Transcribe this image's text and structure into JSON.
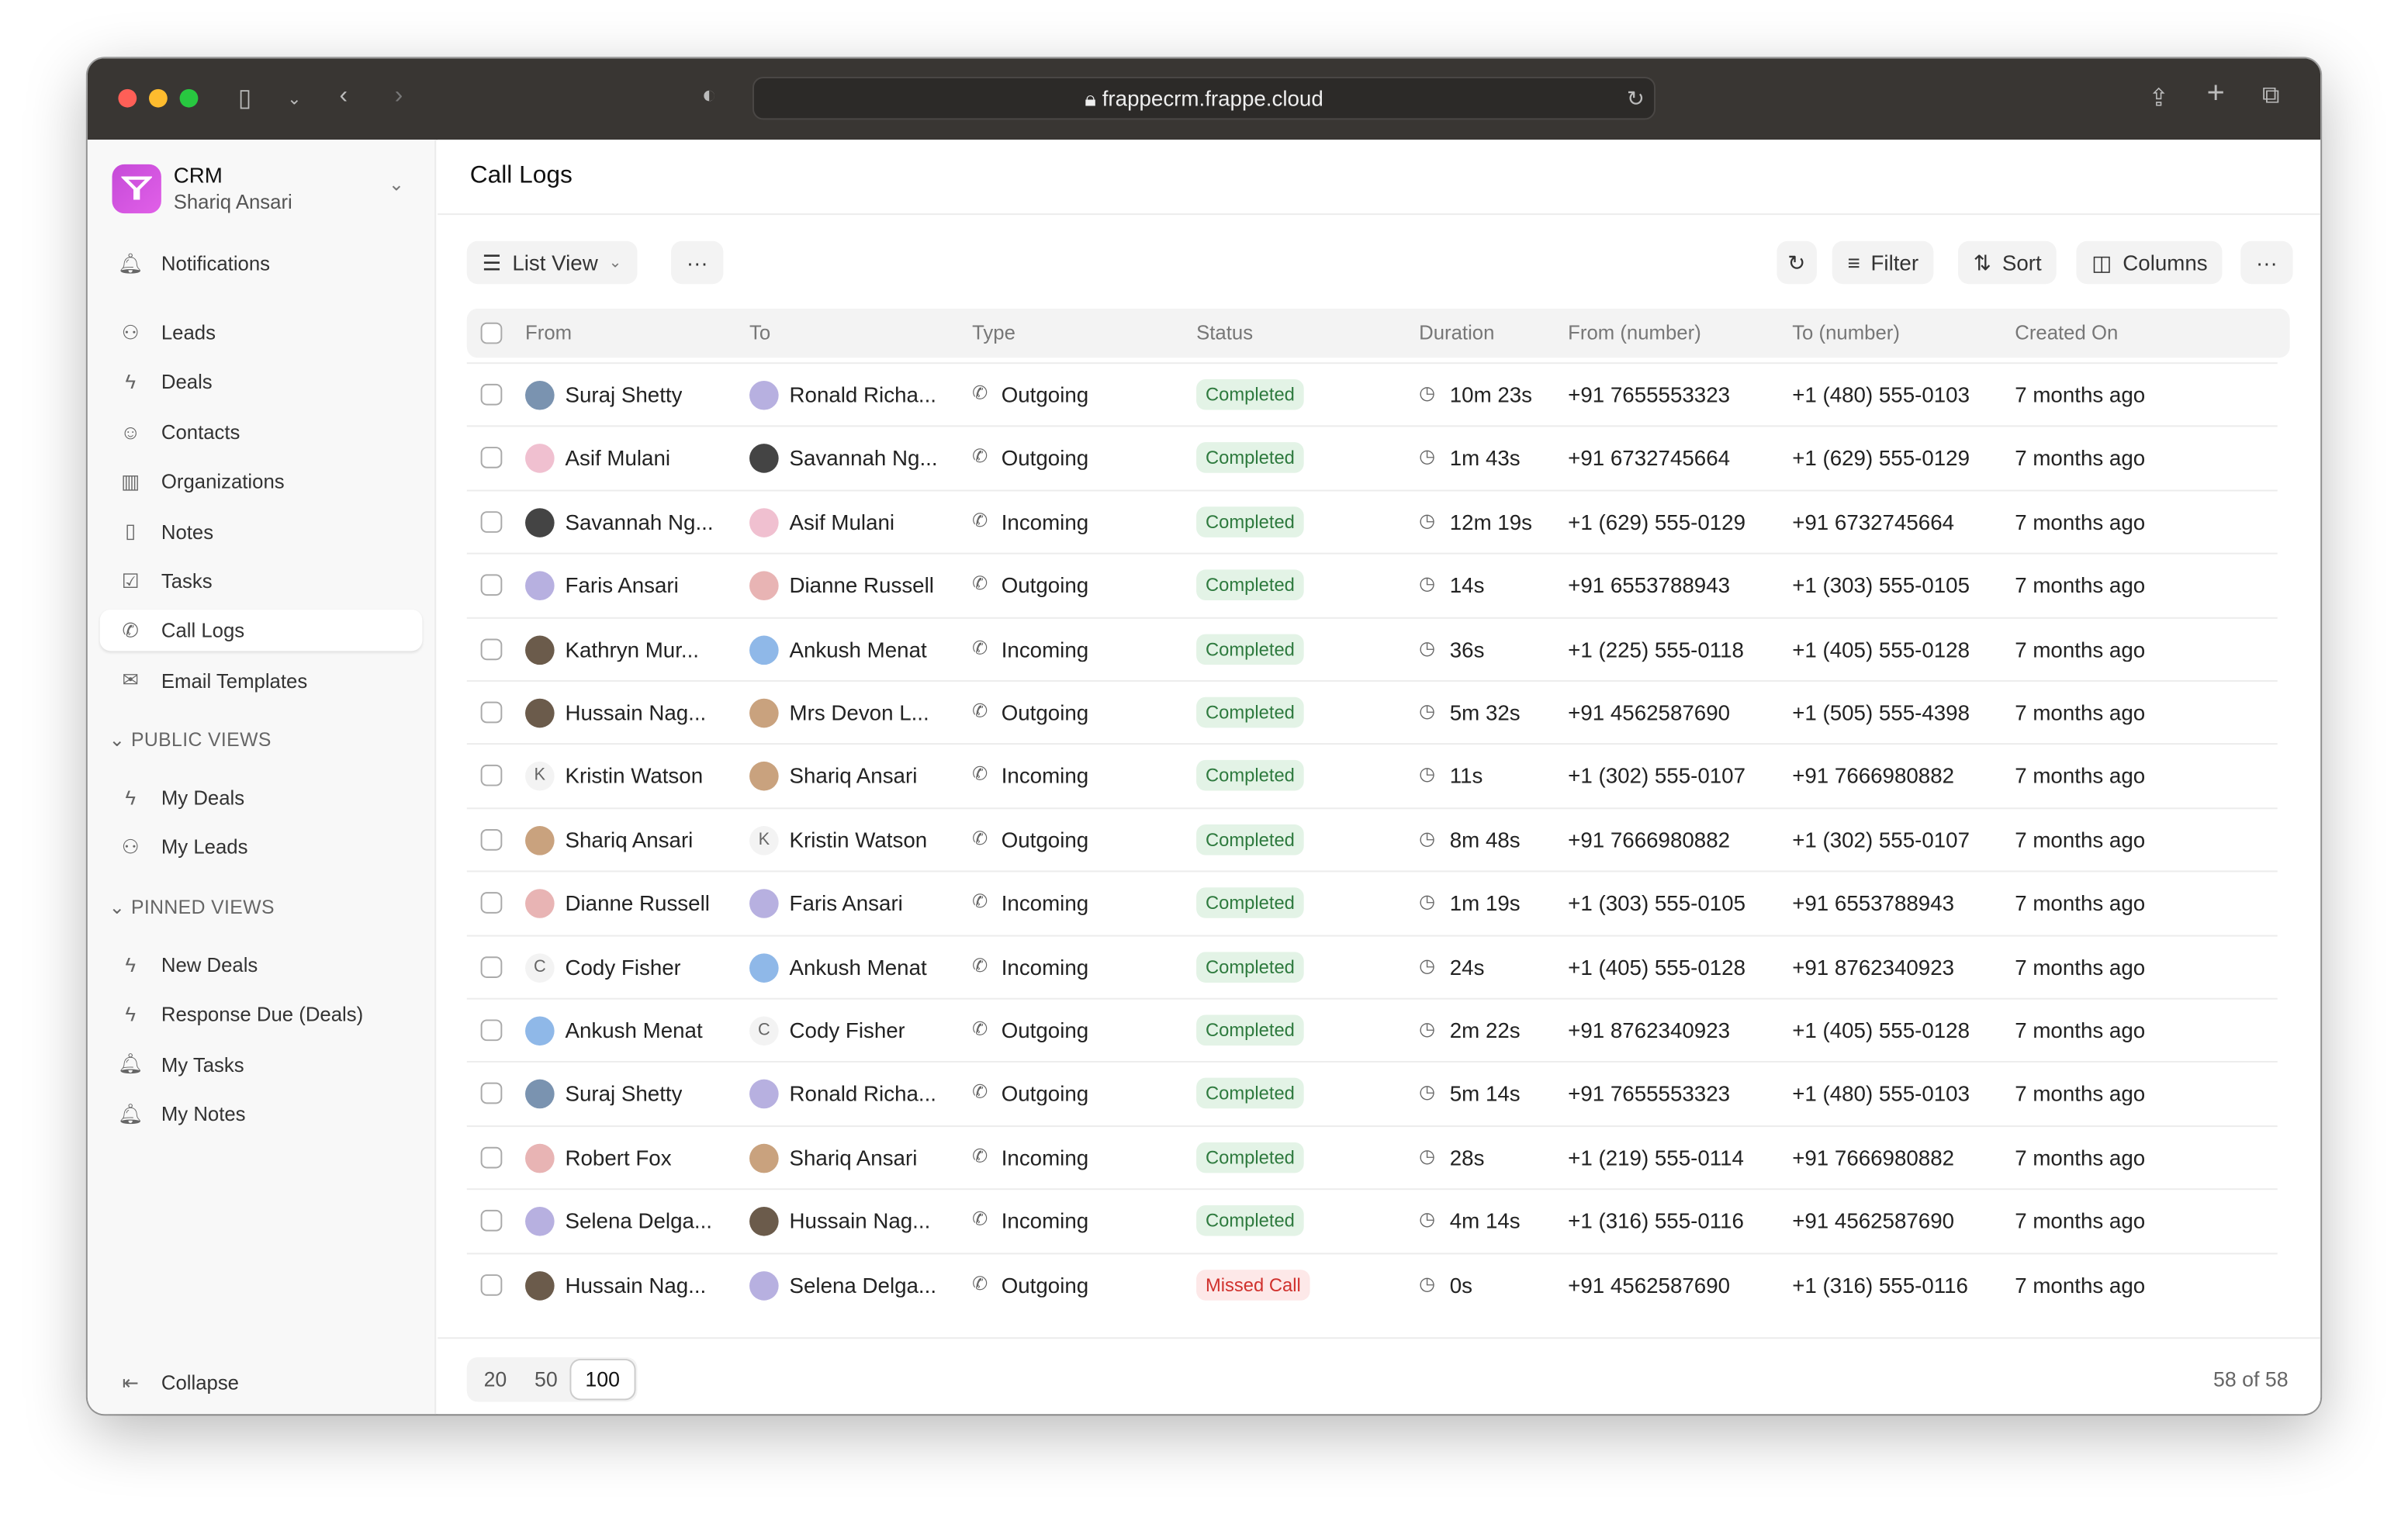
{
  "browser": {
    "url": "frappecrm.frappe.cloud"
  },
  "sidebar": {
    "app": "CRM",
    "user": "Shariq Ansari",
    "top": [
      {
        "label": "Notifications",
        "icon": "bell-icon"
      }
    ],
    "items": [
      {
        "label": "Leads",
        "icon": "users-icon"
      },
      {
        "label": "Deals",
        "icon": "zap-icon"
      },
      {
        "label": "Contacts",
        "icon": "contact-icon"
      },
      {
        "label": "Organizations",
        "icon": "building-icon"
      },
      {
        "label": "Notes",
        "icon": "file-icon"
      },
      {
        "label": "Tasks",
        "icon": "check-square-icon"
      },
      {
        "label": "Call Logs",
        "icon": "phone-icon",
        "active": true
      },
      {
        "label": "Email Templates",
        "icon": "mail-icon"
      }
    ],
    "public_title": "PUBLIC VIEWS",
    "public": [
      {
        "label": "My Deals",
        "icon": "zap-icon"
      },
      {
        "label": "My Leads",
        "icon": "users-icon"
      }
    ],
    "pinned_title": "PINNED VIEWS",
    "pinned": [
      {
        "label": "New Deals",
        "icon": "zap-icon"
      },
      {
        "label": "Response Due (Deals)",
        "icon": "zap-icon"
      },
      {
        "label": "My Tasks",
        "icon": "bell-icon"
      },
      {
        "label": "My Notes",
        "icon": "bell-icon"
      }
    ],
    "collapse": "Collapse"
  },
  "page": {
    "title": "Call Logs"
  },
  "toolbar": {
    "view": "List View",
    "filter": "Filter",
    "sort": "Sort",
    "columns": "Columns"
  },
  "table": {
    "headers": [
      "From",
      "To",
      "Type",
      "Status",
      "Duration",
      "From (number)",
      "To (number)",
      "Created On"
    ],
    "rows": [
      [
        "Suraj Shetty",
        "Ronald Richa...",
        "Outgoing",
        "Completed",
        "10m 23s",
        "+91 7655553323",
        "+1 (480) 555-0103",
        "7 months ago"
      ],
      [
        "Asif Mulani",
        "Savannah Ng...",
        "Outgoing",
        "Completed",
        "1m 43s",
        "+91 6732745664",
        "+1 (629) 555-0129",
        "7 months ago"
      ],
      [
        "Savannah Ng...",
        "Asif Mulani",
        "Incoming",
        "Completed",
        "12m 19s",
        "+1 (629) 555-0129",
        "+91 6732745664",
        "7 months ago"
      ],
      [
        "Faris Ansari",
        "Dianne Russell",
        "Outgoing",
        "Completed",
        "14s",
        "+91 6553788943",
        "+1 (303) 555-0105",
        "7 months ago"
      ],
      [
        "Kathryn Mur...",
        "Ankush Menat",
        "Incoming",
        "Completed",
        "36s",
        "+1 (225) 555-0118",
        "+1 (405) 555-0128",
        "7 months ago"
      ],
      [
        "Hussain Nag...",
        "Mrs Devon L...",
        "Outgoing",
        "Completed",
        "5m 32s",
        "+91 4562587690",
        "+1 (505) 555-4398",
        "7 months ago"
      ],
      [
        "Kristin Watson",
        "Shariq Ansari",
        "Incoming",
        "Completed",
        "11s",
        "+1 (302) 555-0107",
        "+91 7666980882",
        "7 months ago"
      ],
      [
        "Shariq Ansari",
        "Kristin Watson",
        "Outgoing",
        "Completed",
        "8m 48s",
        "+91 7666980882",
        "+1 (302) 555-0107",
        "7 months ago"
      ],
      [
        "Dianne Russell",
        "Faris Ansari",
        "Incoming",
        "Completed",
        "1m 19s",
        "+1 (303) 555-0105",
        "+91 6553788943",
        "7 months ago"
      ],
      [
        "Cody Fisher",
        "Ankush Menat",
        "Incoming",
        "Completed",
        "24s",
        "+1 (405) 555-0128",
        "+91 8762340923",
        "7 months ago"
      ],
      [
        "Ankush Menat",
        "Cody Fisher",
        "Outgoing",
        "Completed",
        "2m 22s",
        "+91 8762340923",
        "+1 (405) 555-0128",
        "7 months ago"
      ],
      [
        "Suraj Shetty",
        "Ronald Richa...",
        "Outgoing",
        "Completed",
        "5m 14s",
        "+91 7655553323",
        "+1 (480) 555-0103",
        "7 months ago"
      ],
      [
        "Robert Fox",
        "Shariq Ansari",
        "Incoming",
        "Completed",
        "28s",
        "+1 (219) 555-0114",
        "+91 7666980882",
        "7 months ago"
      ],
      [
        "Selena Delga...",
        "Hussain Nag...",
        "Incoming",
        "Completed",
        "4m 14s",
        "+1 (316) 555-0116",
        "+91 4562587690",
        "7 months ago"
      ],
      [
        "Hussain Nag...",
        "Selena Delga...",
        "Outgoing",
        "Missed Call",
        "0s",
        "+91 4562587690",
        "+1 (316) 555-0116",
        "7 months ago"
      ]
    ]
  },
  "avatars": {
    "letter": {
      "Kristin Watson": "K",
      "Cody Fisher": "C"
    }
  },
  "pagination": {
    "sizes": [
      "20",
      "50",
      "100"
    ],
    "selected": "100",
    "count": "58 of 58"
  },
  "colors": {
    "completed_bg": "#e3f3e6",
    "completed_fg": "#2e7a3e",
    "missed_bg": "#fde8e8",
    "missed_fg": "#d0312d",
    "brand": "#d255e0"
  }
}
